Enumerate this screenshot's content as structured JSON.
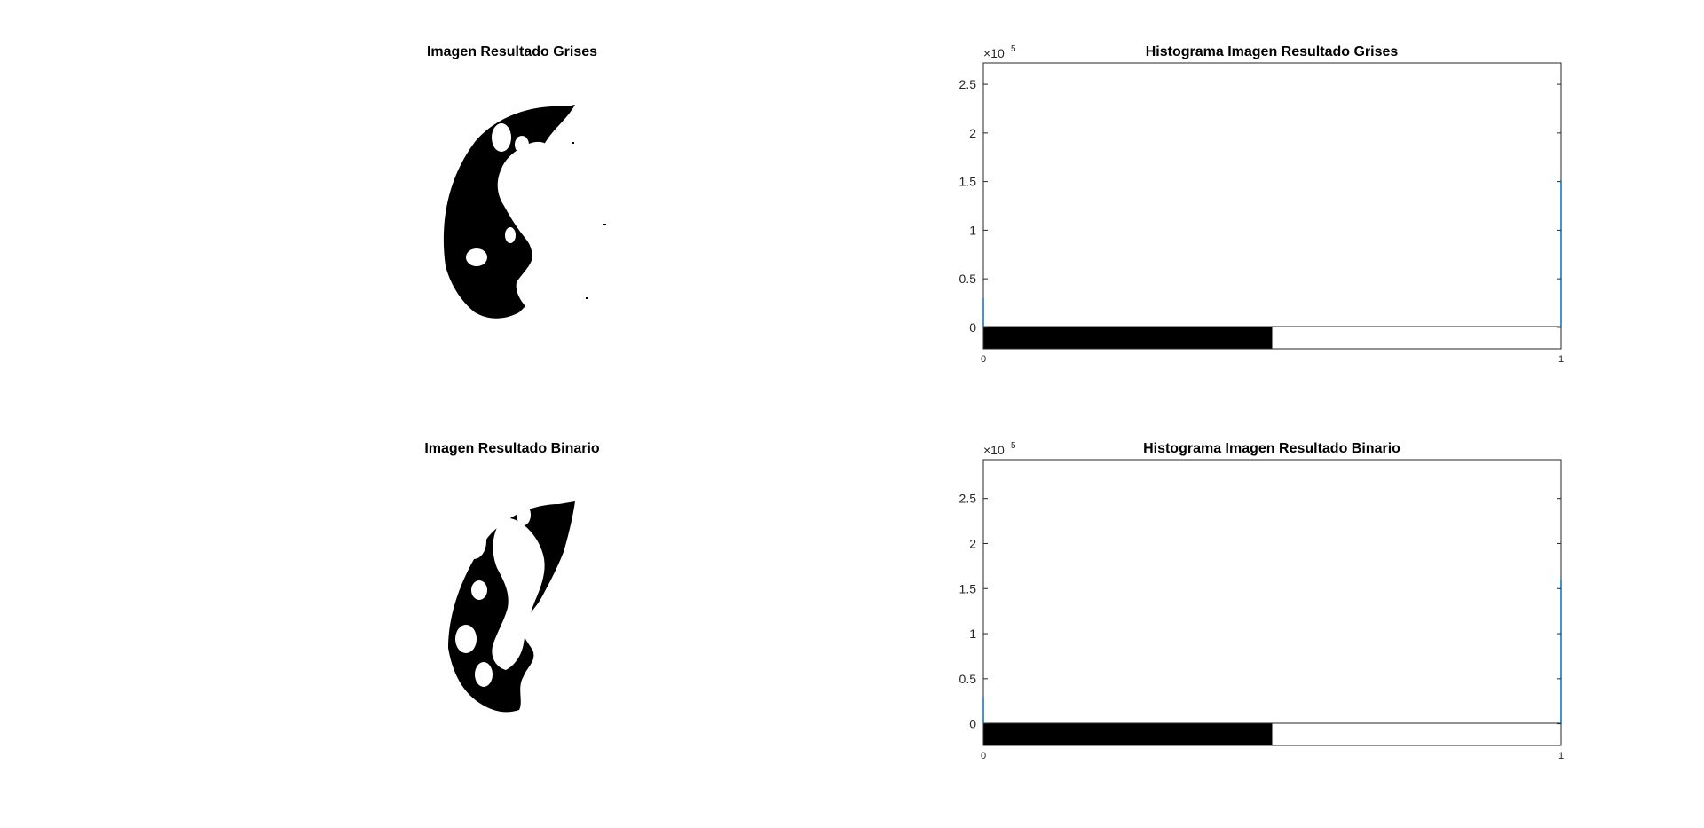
{
  "figure": {
    "background": "#ffffff",
    "axis_color": "#262626",
    "series_color": "#0072bd"
  },
  "chart_data": [
    {
      "type": "image",
      "title": "Imagen Resultado Grises",
      "description_colors": [
        "#000000",
        "#ffffff"
      ]
    },
    {
      "type": "bar",
      "title": "Histograma Imagen Resultado Grises",
      "xlabel": "",
      "ylabel": "",
      "x": [
        0,
        1
      ],
      "values": [
        30000,
        150000
      ],
      "xlim": [
        0,
        1
      ],
      "ylim": [
        -22000,
        272000
      ],
      "y_exponent": "×10",
      "y_exponent_power": "5",
      "ytick_values": [
        0,
        50000,
        100000,
        150000,
        200000,
        250000
      ],
      "ytick_labels": [
        "0",
        "0.5",
        "1",
        "1.5",
        "2",
        "2.5"
      ],
      "xtick_labels": [
        "0",
        "1"
      ],
      "colorbar": [
        "#000000",
        "#ffffff"
      ],
      "grid": false
    },
    {
      "type": "image",
      "title": "Imagen Resultado Binario",
      "description_colors": [
        "#000000",
        "#ffffff"
      ]
    },
    {
      "type": "bar",
      "title": "Histograma Imagen Resultado Binario",
      "xlabel": "",
      "ylabel": "",
      "x": [
        0,
        1
      ],
      "values": [
        30000,
        160000
      ],
      "xlim": [
        0,
        1
      ],
      "ylim": [
        -24000,
        293000
      ],
      "y_exponent": "×10",
      "y_exponent_power": "5",
      "ytick_values": [
        0,
        50000,
        100000,
        150000,
        200000,
        250000
      ],
      "ytick_labels": [
        "0",
        "0.5",
        "1",
        "1.5",
        "2",
        "2.5"
      ],
      "xtick_labels": [
        "0",
        "1"
      ],
      "colorbar": [
        "#000000",
        "#ffffff"
      ],
      "grid": false
    }
  ]
}
